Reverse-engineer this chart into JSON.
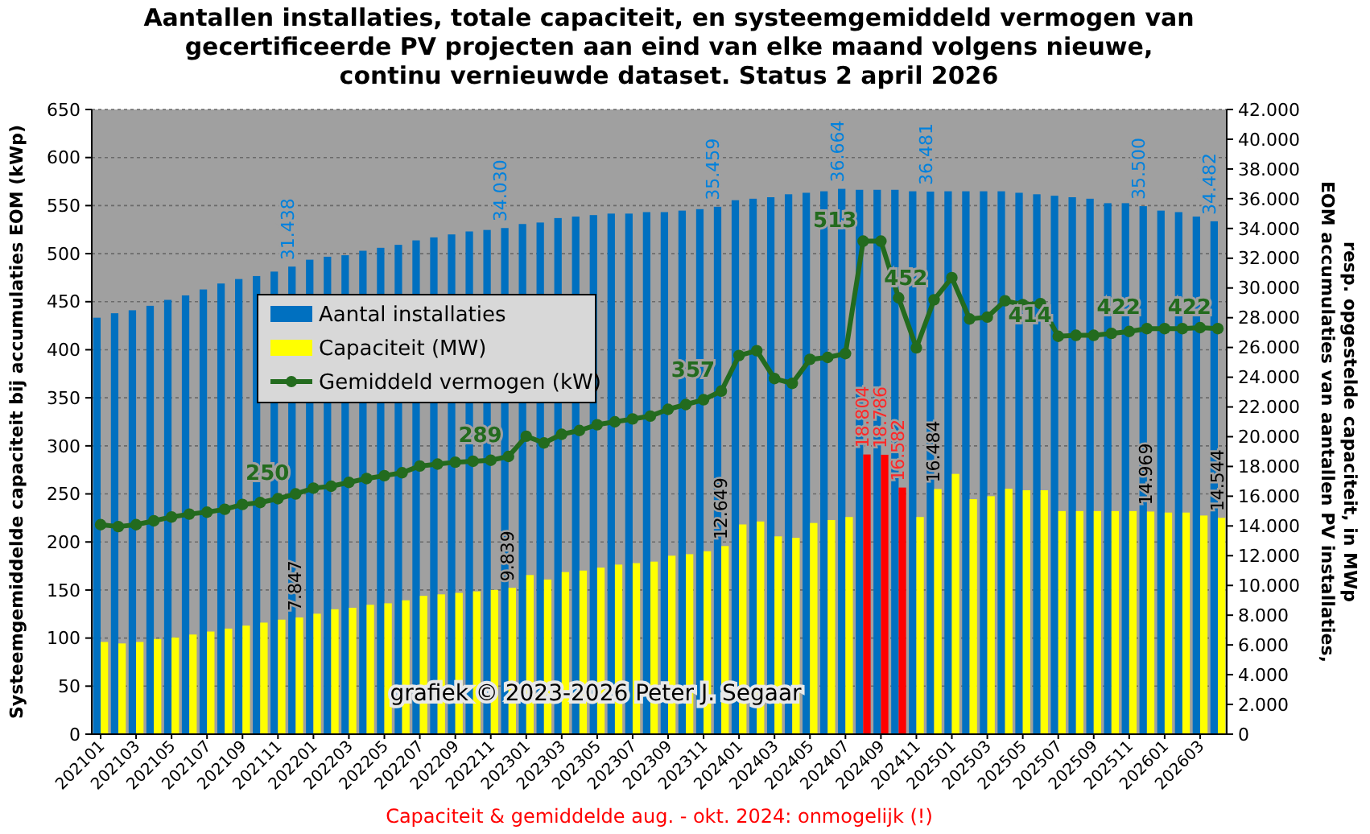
{
  "chart_data": {
    "type": "bar",
    "title": "Aantallen installaties, totale capaciteit, en systeemgemiddeld vermogen van\ngecertificeerde PV projecten aan eind van elke maand volgens nieuwe,\ncontinu vernieuwde dataset. Status 2 april 2026",
    "ylabel": "Systeemgemiddelde capaciteit bij accumulaties EOM (kWp)",
    "y2label": "EOM accumulaties van aantallen PV installaties,\nresp. opgestelde capaciteit, in MWp",
    "annotations": [
      "grafiek © 2023-2026 Peter J. Segaar",
      "Capaciteit & gemiddelde aug. - okt. 2024: onmogelijk (!)"
    ],
    "categories": [
      "202101",
      null,
      "202103",
      null,
      "202105",
      null,
      "202107",
      null,
      "202109",
      null,
      "202111",
      null,
      "202201",
      null,
      "202203",
      null,
      "202205",
      null,
      "202207",
      null,
      "202209",
      null,
      "202211",
      null,
      "202301",
      null,
      "202303",
      null,
      "202305",
      null,
      "202307",
      null,
      "202309",
      null,
      "202311",
      null,
      "202401",
      null,
      "202403",
      null,
      "202405",
      null,
      "202407",
      null,
      "202409",
      null,
      "202411",
      null,
      "202501",
      null,
      "202503",
      null,
      "202505",
      null,
      "202507",
      null,
      "202509",
      null,
      "202511",
      null,
      "202601",
      null,
      "202603",
      null
    ],
    "series": [
      {
        "name": "Aantal installaties",
        "axis": "y2",
        "color": "#0070c0",
        "values": [
          28000,
          28300,
          28500,
          28800,
          29200,
          29500,
          29900,
          30300,
          30600,
          30800,
          31100,
          31438,
          31900,
          32100,
          32200,
          32500,
          32700,
          32900,
          33200,
          33400,
          33600,
          33800,
          33900,
          34030,
          34300,
          34400,
          34700,
          34800,
          34900,
          35000,
          35000,
          35100,
          35100,
          35200,
          35300,
          35459,
          35900,
          36000,
          36100,
          36300,
          36400,
          36500,
          36664,
          36600,
          36600,
          36600,
          36500,
          36481,
          36500,
          36500,
          36500,
          36500,
          36400,
          36300,
          36200,
          36100,
          36000,
          35700,
          35700,
          35500,
          35200,
          35100,
          34800,
          34482
        ],
        "value_labels": [
          null,
          null,
          null,
          null,
          null,
          null,
          null,
          null,
          null,
          null,
          null,
          "31.438",
          null,
          null,
          null,
          null,
          null,
          null,
          null,
          null,
          null,
          null,
          null,
          "34.030",
          null,
          null,
          null,
          null,
          null,
          null,
          null,
          null,
          null,
          null,
          null,
          "35.459",
          null,
          null,
          null,
          null,
          null,
          null,
          "36.664",
          null,
          null,
          null,
          null,
          "36.481",
          null,
          null,
          null,
          null,
          null,
          null,
          null,
          null,
          null,
          null,
          null,
          "35.500",
          null,
          null,
          null,
          "34.482"
        ]
      },
      {
        "name": "Capaciteit (MW)",
        "axis": "y2",
        "color": "#ffff00",
        "values": [
          6200,
          6100,
          6200,
          6400,
          6500,
          6700,
          6900,
          7100,
          7300,
          7500,
          7700,
          7847,
          8100,
          8400,
          8500,
          8700,
          8800,
          9000,
          9300,
          9400,
          9500,
          9600,
          9700,
          9839,
          10700,
          10400,
          10900,
          11000,
          11200,
          11400,
          11500,
          11600,
          12000,
          12100,
          12300,
          12649,
          14100,
          14300,
          13300,
          13200,
          14200,
          14400,
          14600,
          18804,
          18786,
          16582,
          14600,
          16484,
          17500,
          15800,
          16000,
          16500,
          16400,
          16400,
          15000,
          15000,
          15000,
          15000,
          15000,
          14969,
          14900,
          14900,
          14700,
          14544
        ],
        "colors": [
          "#ffff00",
          "#ffff00",
          "#ffff00",
          "#ffff00",
          "#ffff00",
          "#ffff00",
          "#ffff00",
          "#ffff00",
          "#ffff00",
          "#ffff00",
          "#ffff00",
          "#ffff00",
          "#ffff00",
          "#ffff00",
          "#ffff00",
          "#ffff00",
          "#ffff00",
          "#ffff00",
          "#ffff00",
          "#ffff00",
          "#ffff00",
          "#ffff00",
          "#ffff00",
          "#ffff00",
          "#ffff00",
          "#ffff00",
          "#ffff00",
          "#ffff00",
          "#ffff00",
          "#ffff00",
          "#ffff00",
          "#ffff00",
          "#ffff00",
          "#ffff00",
          "#ffff00",
          "#ffff00",
          "#ffff00",
          "#ffff00",
          "#ffff00",
          "#ffff00",
          "#ffff00",
          "#ffff00",
          "#ffff00",
          "#ff0000",
          "#ff0000",
          "#ff0000",
          "#ffff00",
          "#ffff00",
          "#ffff00",
          "#ffff00",
          "#ffff00",
          "#ffff00",
          "#ffff00",
          "#ffff00",
          "#ffff00",
          "#ffff00",
          "#ffff00",
          "#ffff00",
          "#ffff00",
          "#ffff00",
          "#ffff00",
          "#ffff00",
          "#ffff00",
          "#ffff00"
        ],
        "value_labels": [
          null,
          null,
          null,
          null,
          null,
          null,
          null,
          null,
          null,
          null,
          null,
          "7.847",
          null,
          null,
          null,
          null,
          null,
          null,
          null,
          null,
          null,
          null,
          null,
          "9.839",
          null,
          null,
          null,
          null,
          null,
          null,
          null,
          null,
          null,
          null,
          null,
          "12.649",
          null,
          null,
          null,
          null,
          null,
          null,
          null,
          "18.804",
          "18.786",
          "16.582",
          null,
          "16.484",
          null,
          null,
          null,
          null,
          null,
          null,
          null,
          null,
          null,
          null,
          null,
          "14.969",
          null,
          null,
          null,
          "14.544"
        ]
      },
      {
        "name": "Gemiddeld vermogen (kW)",
        "type": "line",
        "color": "#236b1e",
        "values": [
          218,
          216,
          218,
          222,
          226,
          229,
          231,
          234,
          239,
          241,
          245,
          250,
          256,
          258,
          262,
          266,
          269,
          272,
          279,
          281,
          283,
          284,
          285,
          289,
          310,
          303,
          312,
          316,
          322,
          325,
          328,
          331,
          338,
          343,
          348,
          357,
          394,
          399,
          370,
          365,
          390,
          392,
          396,
          513,
          513,
          454,
          402,
          452,
          475,
          432,
          434,
          451,
          447,
          448,
          414,
          415,
          415,
          417,
          419,
          422,
          422,
          422,
          423,
          422
        ],
        "value_labels": [
          null,
          null,
          null,
          null,
          null,
          null,
          null,
          null,
          null,
          null,
          null,
          "250",
          null,
          null,
          null,
          null,
          null,
          null,
          null,
          null,
          null,
          null,
          null,
          "289",
          null,
          null,
          null,
          null,
          null,
          null,
          null,
          null,
          null,
          null,
          null,
          "357",
          null,
          null,
          null,
          null,
          null,
          null,
          null,
          "513",
          null,
          null,
          null,
          "452",
          null,
          null,
          null,
          null,
          null,
          null,
          "414",
          null,
          null,
          null,
          null,
          "422",
          null,
          null,
          null,
          "422"
        ]
      }
    ],
    "ylim": [
      0,
      650
    ],
    "yticks": [
      0,
      50,
      100,
      150,
      200,
      250,
      300,
      350,
      400,
      450,
      500,
      550,
      600,
      650
    ],
    "y2lim": [
      0,
      42000
    ],
    "y2ticks": [
      0,
      {
        "value": 2000,
        "label": "2.000"
      },
      {
        "value": 4000,
        "label": "4.000"
      },
      {
        "value": 6000,
        "label": "6.000"
      },
      {
        "value": 8000,
        "label": "8.000"
      },
      {
        "value": 10000,
        "label": "10.000"
      },
      {
        "value": 12000,
        "label": "12.000"
      },
      {
        "value": 14000,
        "label": "14.000"
      },
      {
        "value": 16000,
        "label": "16.000"
      },
      {
        "value": 18000,
        "label": "18.000"
      },
      {
        "value": 20000,
        "label": "20.000"
      },
      {
        "value": 22000,
        "label": "22.000"
      },
      {
        "value": 24000,
        "label": "24.000"
      },
      {
        "value": 26000,
        "label": "26.000"
      },
      {
        "value": 28000,
        "label": "28.000"
      },
      {
        "value": 30000,
        "label": "30.000"
      },
      {
        "value": 32000,
        "label": "32.000"
      },
      {
        "value": 34000,
        "label": "34.000"
      },
      {
        "value": 36000,
        "label": "36.000"
      },
      {
        "value": 38000,
        "label": "38.000"
      },
      {
        "value": 40000,
        "label": "40.000"
      },
      {
        "value": 42000,
        "label": "42.000"
      }
    ],
    "grid": "y",
    "legend": "center",
    "marker": "circle",
    "line_style": "solid"
  }
}
